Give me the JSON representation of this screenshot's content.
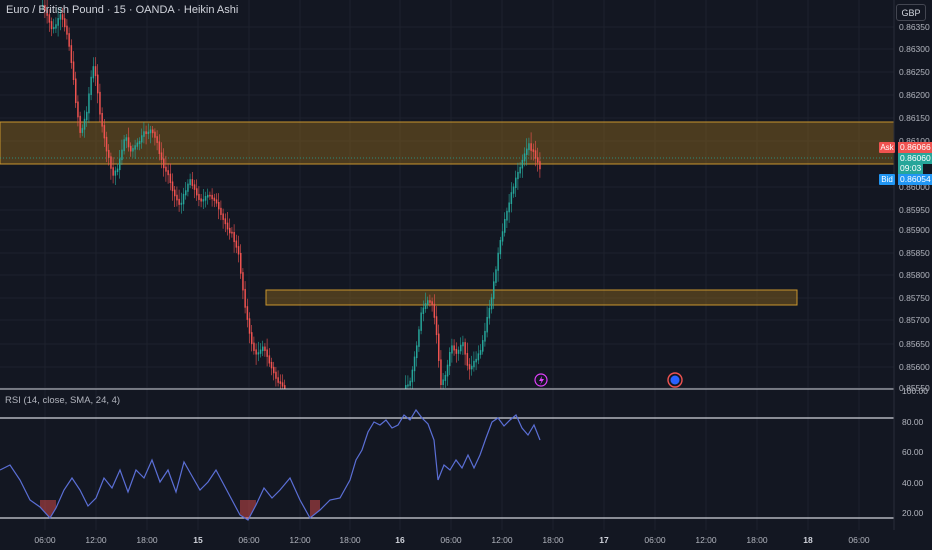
{
  "header": {
    "title": "Euro / British Pound · 15 · OANDA · Heikin Ashi",
    "currency": "GBP"
  },
  "price_axis": {
    "ticks": [
      "0.86350",
      "0.86300",
      "0.86250",
      "0.86200",
      "0.86150",
      "0.86100",
      "0.86000",
      "0.85950",
      "0.85900",
      "0.85850",
      "0.85800",
      "0.85750",
      "0.85700",
      "0.85650",
      "0.85600",
      "0.85550"
    ],
    "ask_label": "Ask",
    "ask_value": "0.86066",
    "last_value": "0.86060",
    "countdown": "09:03",
    "bid_label": "Bid",
    "bid_value": "0.86054"
  },
  "rsi": {
    "label": "RSI (14, close, SMA, 24, 4)",
    "ticks": [
      "100.00",
      "80.00",
      "60.00",
      "40.00",
      "20.00"
    ],
    "upper": 80,
    "lower": 20
  },
  "time_axis": {
    "ticks": [
      {
        "label": "06:00",
        "bold": false
      },
      {
        "label": "12:00",
        "bold": false
      },
      {
        "label": "18:00",
        "bold": false
      },
      {
        "label": "15",
        "bold": true
      },
      {
        "label": "06:00",
        "bold": false
      },
      {
        "label": "12:00",
        "bold": false
      },
      {
        "label": "18:00",
        "bold": false
      },
      {
        "label": "16",
        "bold": true
      },
      {
        "label": "06:00",
        "bold": false
      },
      {
        "label": "12:00",
        "bold": false
      },
      {
        "label": "18:00",
        "bold": false
      },
      {
        "label": "17",
        "bold": true
      },
      {
        "label": "06:00",
        "bold": false
      },
      {
        "label": "12:00",
        "bold": false
      },
      {
        "label": "18:00",
        "bold": false
      },
      {
        "label": "18",
        "bold": true
      },
      {
        "label": "06:00",
        "bold": false
      }
    ]
  },
  "colors": {
    "background": "#131722",
    "up": "#26a69a",
    "down": "#ef5350",
    "zone_fill": "#7a5a1e",
    "zone_border": "#c8962e",
    "rsi_line": "#5b6fd6",
    "ask": "#ef5350",
    "bid": "#2196f3",
    "last": "#26a69a"
  },
  "icons": [
    "lightning-event-icon",
    "economic-event-icon"
  ]
}
